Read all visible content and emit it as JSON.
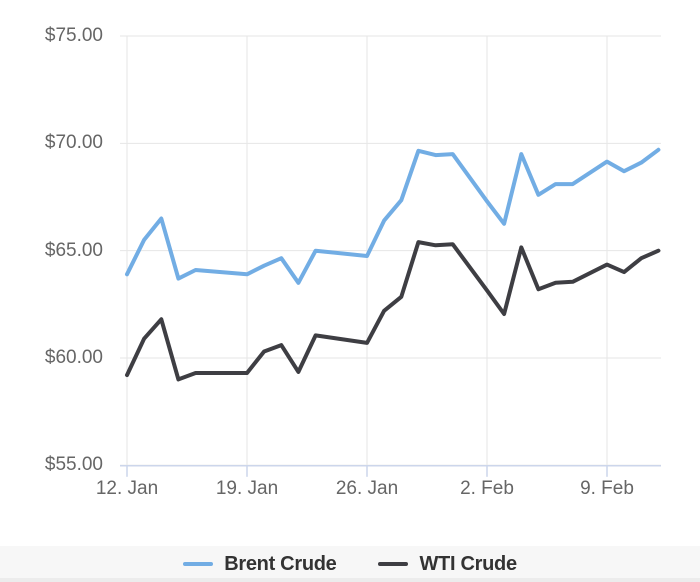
{
  "chart_data": {
    "type": "line",
    "title": "",
    "xlabel": "",
    "ylabel": "",
    "ylim": [
      55,
      75
    ],
    "grid": true,
    "legend_position": "bottom",
    "y_axis": {
      "tick_values": [
        75,
        70,
        65,
        60,
        55
      ],
      "tick_labels": [
        "$75.00",
        "$70.00",
        "$65.00",
        "$60.00",
        "$55.00"
      ]
    },
    "x_axis": {
      "tick_labels": [
        "12. Jan",
        "19. Jan",
        "26. Jan",
        "2. Feb",
        "9. Feb"
      ],
      "tick_day_offsets": [
        0,
        7,
        14,
        21,
        28
      ]
    },
    "series": [
      {
        "name": "Brent Crude",
        "color": "#72ade4",
        "points": [
          {
            "date": "12. Jan",
            "d": 0,
            "v": 63.9
          },
          {
            "date": "13. Jan",
            "d": 1,
            "v": 65.5
          },
          {
            "date": "14. Jan",
            "d": 2,
            "v": 66.5
          },
          {
            "date": "15. Jan",
            "d": 3,
            "v": 63.7
          },
          {
            "date": "16. Jan",
            "d": 4,
            "v": 64.1
          },
          {
            "date": "19. Jan",
            "d": 7,
            "v": 63.9
          },
          {
            "date": "20. Jan",
            "d": 8,
            "v": 64.3
          },
          {
            "date": "21. Jan",
            "d": 9,
            "v": 64.65
          },
          {
            "date": "22. Jan",
            "d": 10,
            "v": 63.5
          },
          {
            "date": "23. Jan",
            "d": 11,
            "v": 65.0
          },
          {
            "date": "26. Jan",
            "d": 14,
            "v": 64.75
          },
          {
            "date": "27. Jan",
            "d": 15,
            "v": 66.4
          },
          {
            "date": "28. Jan",
            "d": 16,
            "v": 67.35
          },
          {
            "date": "29. Jan",
            "d": 17,
            "v": 69.65
          },
          {
            "date": "30. Jan",
            "d": 18,
            "v": 69.45
          },
          {
            "date": "31. Jan",
            "d": 19,
            "v": 69.5
          },
          {
            "date": "2. Feb",
            "d": 21,
            "v": 67.3
          },
          {
            "date": "3. Feb",
            "d": 22,
            "v": 66.25
          },
          {
            "date": "4. Feb",
            "d": 23,
            "v": 69.5
          },
          {
            "date": "5. Feb",
            "d": 24,
            "v": 67.6
          },
          {
            "date": "6. Feb",
            "d": 25,
            "v": 68.1
          },
          {
            "date": "7. Feb",
            "d": 26,
            "v": 68.1
          },
          {
            "date": "9. Feb",
            "d": 28,
            "v": 69.15
          },
          {
            "date": "10. Feb",
            "d": 29,
            "v": 68.7
          },
          {
            "date": "11. Feb",
            "d": 30,
            "v": 69.1
          },
          {
            "date": "12. Feb",
            "d": 31,
            "v": 69.7
          }
        ]
      },
      {
        "name": "WTI Crude",
        "color": "#3e3e43",
        "points": [
          {
            "date": "12. Jan",
            "d": 0,
            "v": 59.2
          },
          {
            "date": "13. Jan",
            "d": 1,
            "v": 60.9
          },
          {
            "date": "14. Jan",
            "d": 2,
            "v": 61.8
          },
          {
            "date": "15. Jan",
            "d": 3,
            "v": 59.0
          },
          {
            "date": "16. Jan",
            "d": 4,
            "v": 59.3
          },
          {
            "date": "19. Jan",
            "d": 7,
            "v": 59.3
          },
          {
            "date": "20. Jan",
            "d": 8,
            "v": 60.3
          },
          {
            "date": "21. Jan",
            "d": 9,
            "v": 60.6
          },
          {
            "date": "22. Jan",
            "d": 10,
            "v": 59.35
          },
          {
            "date": "23. Jan",
            "d": 11,
            "v": 61.05
          },
          {
            "date": "26. Jan",
            "d": 14,
            "v": 60.7
          },
          {
            "date": "27. Jan",
            "d": 15,
            "v": 62.2
          },
          {
            "date": "28. Jan",
            "d": 16,
            "v": 62.85
          },
          {
            "date": "29. Jan",
            "d": 17,
            "v": 65.4
          },
          {
            "date": "30. Jan",
            "d": 18,
            "v": 65.25
          },
          {
            "date": "31. Jan",
            "d": 19,
            "v": 65.3
          },
          {
            "date": "2. Feb",
            "d": 21,
            "v": 63.15
          },
          {
            "date": "3. Feb",
            "d": 22,
            "v": 62.05
          },
          {
            "date": "4. Feb",
            "d": 23,
            "v": 65.15
          },
          {
            "date": "5. Feb",
            "d": 24,
            "v": 63.2
          },
          {
            "date": "6. Feb",
            "d": 25,
            "v": 63.5
          },
          {
            "date": "7. Feb",
            "d": 26,
            "v": 63.55
          },
          {
            "date": "9. Feb",
            "d": 28,
            "v": 64.35
          },
          {
            "date": "10. Feb",
            "d": 29,
            "v": 64.0
          },
          {
            "date": "11. Feb",
            "d": 30,
            "v": 64.65
          },
          {
            "date": "12. Feb",
            "d": 31,
            "v": 65.0
          }
        ]
      }
    ]
  },
  "legend": {
    "items": [
      {
        "label": "Brent Crude",
        "color": "#72ade4"
      },
      {
        "label": "WTI Crude",
        "color": "#3e3e43"
      }
    ]
  },
  "colors": {
    "gridline": "#e6e6e6",
    "axis_line": "#ccd6eb",
    "tick_mark": "#ccd6eb",
    "axis_label_text": "#666666",
    "legend_text": "#333333",
    "legend_band_bg": "#f7f7f7"
  }
}
